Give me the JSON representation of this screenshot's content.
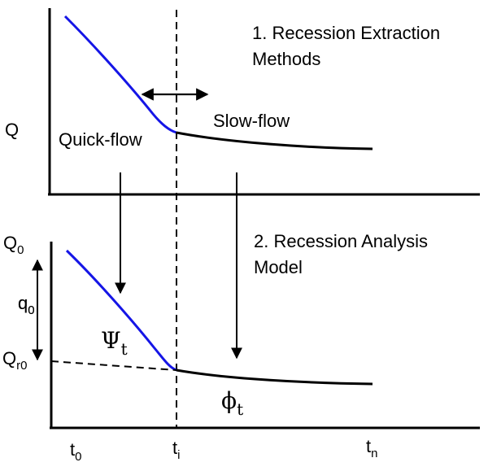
{
  "top_panel": {
    "title_line1": "1. Recession Extraction",
    "title_line2": "Methods",
    "y_axis_label": "Q",
    "quick_flow_label": "Quick-flow",
    "slow_flow_label": "Slow-flow"
  },
  "bottom_panel": {
    "title_line1": "2. Recession Analysis",
    "title_line2": "Model",
    "q0_label": {
      "base": "Q",
      "sub": "0"
    },
    "small_q0_label": {
      "base": "q",
      "sub": "0"
    },
    "qr0_label": {
      "base": "Q",
      "sub": "r0"
    },
    "psi_label": {
      "base": "Ψ",
      "sub": "t"
    },
    "phi_label": {
      "base": "ϕ",
      "sub": "t"
    }
  },
  "x_ticks": {
    "t0": {
      "base": "t",
      "sub": "0"
    },
    "ti": {
      "base": "t",
      "sub": "i"
    },
    "tn": {
      "base": "t",
      "sub": "n"
    }
  },
  "colors": {
    "quick_flow": "#1515e6",
    "slow_flow": "#000000",
    "axes": "#000000"
  }
}
